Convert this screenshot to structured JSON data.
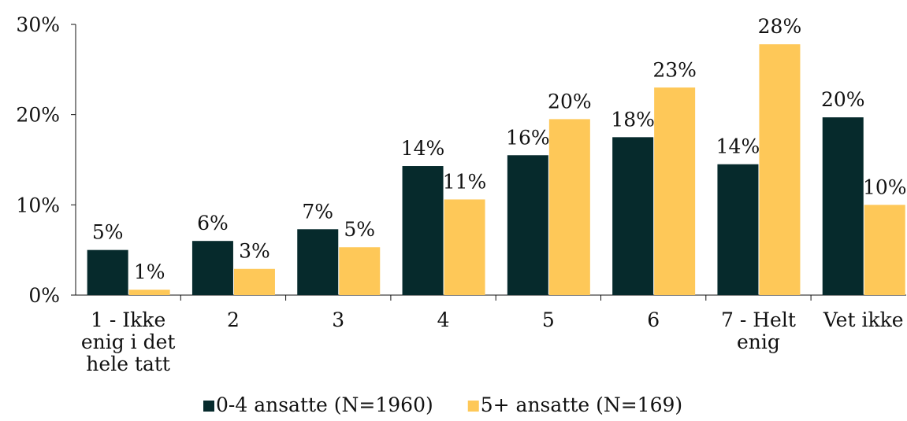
{
  "chart_data": {
    "type": "bar",
    "categories": [
      "1 - Ikke enig i det hele tatt",
      "2",
      "3",
      "4",
      "5",
      "6",
      "7 - Helt enig",
      "Vet ikke"
    ],
    "series": [
      {
        "name": "0-4 ansatte (N=1960)",
        "color": "#062a2c",
        "values": [
          5,
          6,
          7.3,
          14.3,
          15.5,
          17.5,
          14.5,
          19.7
        ],
        "value_labels": [
          "5%",
          "6%",
          "7%",
          "14%",
          "16%",
          "18%",
          "14%",
          "20%"
        ]
      },
      {
        "name": "5+ ansatte (N=169)",
        "color": "#fec858",
        "values": [
          0.6,
          2.9,
          5.3,
          10.6,
          19.5,
          23,
          27.8,
          10
        ],
        "value_labels": [
          "1%",
          "3%",
          "5%",
          "11%",
          "20%",
          "23%",
          "28%",
          "10%"
        ]
      }
    ],
    "ylim": [
      0,
      30
    ],
    "yticks": [
      {
        "value": 0,
        "label": "0%"
      },
      {
        "value": 10,
        "label": "10%"
      },
      {
        "value": 20,
        "label": "20%"
      },
      {
        "value": 30,
        "label": "30%"
      }
    ],
    "legend": "bottom"
  }
}
